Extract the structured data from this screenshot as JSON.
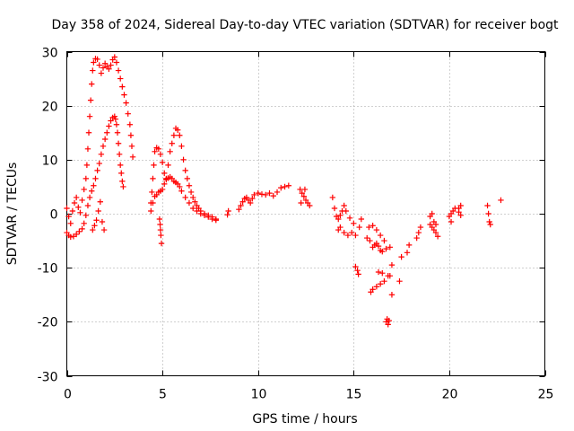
{
  "chart_data": {
    "type": "scatter",
    "title": "Day 358 of 2024, Sidereal Day-to-day VTEC variation (SDTVAR) for receiver bogt",
    "xlabel": "GPS time / hours",
    "ylabel": "SDTVAR / TECUs",
    "xlim": [
      0,
      25
    ],
    "ylim": [
      -30,
      30
    ],
    "x_ticks": [
      0,
      5,
      10,
      15,
      20,
      25
    ],
    "x_tick_labels": [
      "0",
      "5",
      "10",
      "15",
      "20",
      "25"
    ],
    "y_ticks": [
      -30,
      -20,
      -10,
      0,
      10,
      20,
      30
    ],
    "y_tick_labels": [
      "-30",
      "-20",
      "-10",
      "0",
      "10",
      "20",
      "30"
    ],
    "grid": true,
    "marker": "+",
    "series_color": "#ff0000",
    "series": [
      {
        "name": "SDTVAR",
        "points": [
          [
            0.0,
            -3.5
          ],
          [
            0.1,
            -4.0
          ],
          [
            0.2,
            -4.3
          ],
          [
            0.35,
            -4.2
          ],
          [
            0.5,
            -3.8
          ],
          [
            0.65,
            -3.3
          ],
          [
            0.8,
            -2.8
          ],
          [
            0.9,
            -1.8
          ],
          [
            1.0,
            -0.3
          ],
          [
            1.1,
            1.5
          ],
          [
            1.2,
            3.0
          ],
          [
            1.3,
            4.2
          ],
          [
            1.4,
            5.2
          ],
          [
            1.5,
            6.5
          ],
          [
            1.6,
            8.0
          ],
          [
            1.7,
            9.3
          ],
          [
            1.8,
            11.0
          ],
          [
            1.9,
            12.5
          ],
          [
            2.0,
            13.8
          ],
          [
            2.1,
            15.0
          ],
          [
            2.2,
            16.2
          ],
          [
            2.3,
            17.2
          ],
          [
            2.4,
            17.8
          ],
          [
            2.5,
            18.0
          ],
          [
            2.55,
            17.5
          ],
          [
            2.6,
            16.5
          ],
          [
            2.65,
            15.0
          ],
          [
            2.7,
            13.0
          ],
          [
            2.75,
            11.0
          ],
          [
            2.8,
            9.0
          ],
          [
            2.85,
            7.5
          ],
          [
            2.9,
            6.0
          ],
          [
            2.95,
            5.0
          ],
          [
            0.0,
            1.0
          ],
          [
            0.1,
            -0.5
          ],
          [
            0.2,
            -1.8
          ],
          [
            0.3,
            0.5
          ],
          [
            0.4,
            2.0
          ],
          [
            0.5,
            3.0
          ],
          [
            0.6,
            1.2
          ],
          [
            0.7,
            0.2
          ],
          [
            0.8,
            2.5
          ],
          [
            0.9,
            4.5
          ],
          [
            1.0,
            6.5
          ],
          [
            1.05,
            9.0
          ],
          [
            1.1,
            12.0
          ],
          [
            1.15,
            15.0
          ],
          [
            1.2,
            18.0
          ],
          [
            1.25,
            21.0
          ],
          [
            1.3,
            24.0
          ],
          [
            1.35,
            26.5
          ],
          [
            1.4,
            28.0
          ],
          [
            1.5,
            28.7
          ],
          [
            1.6,
            28.6
          ],
          [
            1.7,
            27.5
          ],
          [
            1.8,
            26.0
          ],
          [
            1.9,
            27.0
          ],
          [
            2.0,
            27.8
          ],
          [
            2.1,
            27.2
          ],
          [
            2.2,
            26.8
          ],
          [
            2.3,
            27.5
          ],
          [
            2.4,
            28.5
          ],
          [
            2.5,
            29.0
          ],
          [
            2.6,
            28.0
          ],
          [
            2.7,
            26.5
          ],
          [
            2.8,
            25.0
          ],
          [
            2.9,
            23.5
          ],
          [
            3.0,
            22.0
          ],
          [
            3.1,
            20.5
          ],
          [
            3.2,
            18.5
          ],
          [
            3.3,
            16.5
          ],
          [
            3.35,
            14.5
          ],
          [
            3.4,
            12.5
          ],
          [
            3.45,
            10.5
          ],
          [
            1.35,
            -3.0
          ],
          [
            1.45,
            -2.2
          ],
          [
            1.55,
            -1.2
          ],
          [
            1.65,
            0.5
          ],
          [
            1.75,
            2.2
          ],
          [
            1.85,
            -1.5
          ],
          [
            1.95,
            -3.0
          ],
          [
            4.4,
            0.5
          ],
          [
            4.5,
            2.0
          ],
          [
            4.6,
            3.2
          ],
          [
            4.7,
            3.5
          ],
          [
            4.8,
            4.0
          ],
          [
            4.9,
            4.2
          ],
          [
            5.0,
            4.5
          ],
          [
            5.1,
            5.5
          ],
          [
            5.2,
            6.3
          ],
          [
            5.3,
            6.6
          ],
          [
            5.4,
            6.8
          ],
          [
            5.5,
            6.5
          ],
          [
            5.6,
            6.0
          ],
          [
            5.7,
            5.8
          ],
          [
            5.8,
            5.5
          ],
          [
            5.9,
            5.0
          ],
          [
            6.0,
            4.2
          ],
          [
            6.2,
            3.0
          ],
          [
            6.4,
            2.0
          ],
          [
            6.6,
            1.0
          ],
          [
            6.8,
            0.5
          ],
          [
            7.0,
            0.0
          ],
          [
            7.2,
            -0.3
          ],
          [
            7.4,
            -0.6
          ],
          [
            7.6,
            -1.0
          ],
          [
            7.8,
            -1.2
          ],
          [
            4.4,
            2.0
          ],
          [
            4.45,
            4.0
          ],
          [
            4.5,
            6.5
          ],
          [
            4.55,
            9.0
          ],
          [
            4.6,
            11.5
          ],
          [
            4.7,
            12.2
          ],
          [
            4.8,
            12.0
          ],
          [
            4.9,
            11.0
          ],
          [
            5.0,
            9.5
          ],
          [
            5.1,
            7.5
          ],
          [
            5.2,
            6.5
          ],
          [
            5.3,
            9.0
          ],
          [
            5.4,
            11.5
          ],
          [
            5.5,
            13.0
          ],
          [
            5.6,
            14.5
          ],
          [
            5.7,
            15.8
          ],
          [
            5.8,
            15.5
          ],
          [
            5.9,
            14.5
          ],
          [
            6.0,
            12.5
          ],
          [
            6.1,
            10.0
          ],
          [
            6.2,
            8.0
          ],
          [
            6.3,
            6.5
          ],
          [
            6.4,
            5.2
          ],
          [
            6.5,
            4.0
          ],
          [
            6.6,
            3.0
          ],
          [
            6.7,
            2.2
          ],
          [
            6.8,
            1.5
          ],
          [
            6.9,
            1.0
          ],
          [
            7.0,
            0.5
          ],
          [
            7.2,
            0.0
          ],
          [
            7.4,
            -0.3
          ],
          [
            7.6,
            -0.6
          ],
          [
            7.8,
            -1.0
          ],
          [
            4.85,
            -1.0
          ],
          [
            4.88,
            -2.0
          ],
          [
            4.9,
            -3.0
          ],
          [
            4.92,
            -4.0
          ],
          [
            4.95,
            -5.5
          ],
          [
            8.4,
            -0.2
          ],
          [
            8.45,
            0.5
          ],
          [
            9.0,
            0.8
          ],
          [
            9.1,
            1.5
          ],
          [
            9.2,
            2.2
          ],
          [
            9.3,
            2.8
          ],
          [
            9.4,
            3.0
          ],
          [
            9.5,
            2.5
          ],
          [
            9.6,
            2.0
          ],
          [
            9.7,
            2.8
          ],
          [
            9.8,
            3.5
          ],
          [
            10.0,
            3.8
          ],
          [
            10.2,
            3.6
          ],
          [
            10.4,
            3.5
          ],
          [
            10.6,
            3.8
          ],
          [
            10.8,
            3.3
          ],
          [
            11.0,
            4.0
          ],
          [
            11.2,
            4.8
          ],
          [
            11.4,
            5.0
          ],
          [
            11.6,
            5.2
          ],
          [
            12.2,
            4.5
          ],
          [
            12.3,
            3.8
          ],
          [
            12.4,
            3.2
          ],
          [
            12.5,
            2.5
          ],
          [
            12.6,
            2.0
          ],
          [
            12.7,
            1.5
          ],
          [
            12.25,
            2.0
          ],
          [
            12.45,
            4.5
          ],
          [
            13.9,
            3.0
          ],
          [
            14.0,
            1.0
          ],
          [
            14.1,
            -0.5
          ],
          [
            14.2,
            -1.0
          ],
          [
            14.3,
            -0.3
          ],
          [
            14.4,
            0.5
          ],
          [
            14.5,
            1.5
          ],
          [
            14.6,
            0.5
          ],
          [
            14.8,
            -0.8
          ],
          [
            15.0,
            -1.8
          ],
          [
            14.2,
            -3.0
          ],
          [
            14.3,
            -2.5
          ],
          [
            14.5,
            -3.5
          ],
          [
            14.7,
            -4.0
          ],
          [
            14.9,
            -3.5
          ],
          [
            15.1,
            -4.0
          ],
          [
            15.3,
            -2.5
          ],
          [
            15.4,
            -1.0
          ],
          [
            15.1,
            -9.8
          ],
          [
            15.2,
            -10.5
          ],
          [
            15.25,
            -11.2
          ],
          [
            15.7,
            -4.5
          ],
          [
            15.85,
            -5.0
          ],
          [
            16.0,
            -6.2
          ],
          [
            16.1,
            -5.8
          ],
          [
            16.2,
            -5.5
          ],
          [
            16.3,
            -6.0
          ],
          [
            16.4,
            -6.8
          ],
          [
            16.5,
            -7.0
          ],
          [
            16.7,
            -6.5
          ],
          [
            16.9,
            -6.2
          ],
          [
            15.8,
            -2.5
          ],
          [
            16.0,
            -2.2
          ],
          [
            16.2,
            -3.0
          ],
          [
            16.4,
            -4.0
          ],
          [
            16.6,
            -5.0
          ],
          [
            15.9,
            -14.5
          ],
          [
            16.0,
            -14.0
          ],
          [
            16.2,
            -13.5
          ],
          [
            16.4,
            -13.0
          ],
          [
            16.6,
            -12.5
          ],
          [
            16.8,
            -11.5
          ],
          [
            16.5,
            -11.0
          ],
          [
            16.3,
            -10.8
          ],
          [
            16.9,
            -11.5
          ],
          [
            17.0,
            -9.5
          ],
          [
            17.0,
            -15.0
          ],
          [
            17.4,
            -12.5
          ],
          [
            17.5,
            -8.0
          ],
          [
            16.7,
            -20.0
          ],
          [
            16.75,
            -19.5
          ],
          [
            16.8,
            -20.5
          ],
          [
            16.85,
            -19.8
          ],
          [
            17.8,
            -7.2
          ],
          [
            17.9,
            -5.8
          ],
          [
            18.3,
            -4.5
          ],
          [
            18.4,
            -3.5
          ],
          [
            18.5,
            -2.5
          ],
          [
            19.0,
            -2.0
          ],
          [
            19.1,
            -2.5
          ],
          [
            19.2,
            -3.0
          ],
          [
            19.3,
            -3.5
          ],
          [
            19.4,
            -4.2
          ],
          [
            19.3,
            -2.0
          ],
          [
            19.2,
            -1.5
          ],
          [
            19.0,
            -0.5
          ],
          [
            19.1,
            0.0
          ],
          [
            20.0,
            -0.5
          ],
          [
            20.1,
            0.0
          ],
          [
            20.2,
            0.5
          ],
          [
            20.3,
            1.0
          ],
          [
            20.1,
            -1.5
          ],
          [
            20.5,
            1.0
          ],
          [
            20.6,
            1.5
          ],
          [
            20.5,
            0.3
          ],
          [
            20.6,
            -0.3
          ],
          [
            22.0,
            1.5
          ],
          [
            22.05,
            0.0
          ],
          [
            22.1,
            -1.5
          ],
          [
            22.15,
            -2.0
          ],
          [
            22.7,
            2.5
          ]
        ]
      }
    ]
  }
}
